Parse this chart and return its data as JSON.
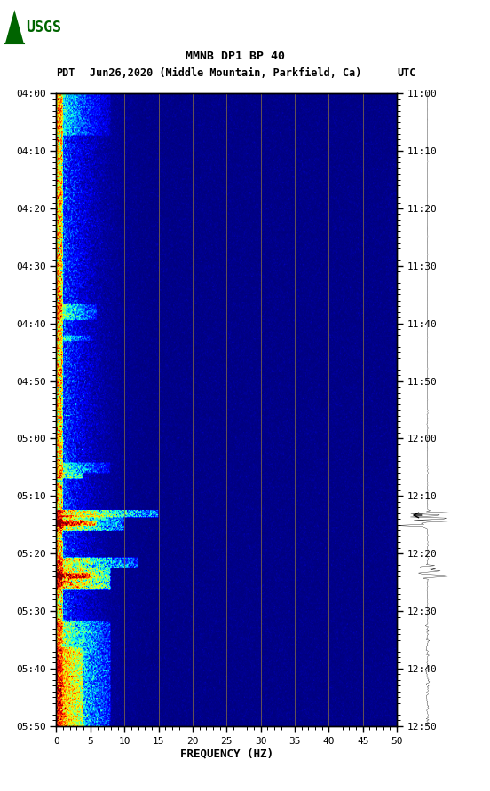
{
  "title_line1": "MMNB DP1 BP 40",
  "title_line2_left": "PDT",
  "title_line2_center": "Jun26,2020 (Middle Mountain, Parkfield, Ca)",
  "title_line2_right": "UTC",
  "xlabel": "FREQUENCY (HZ)",
  "freq_min": 0,
  "freq_max": 50,
  "freq_ticks": [
    0,
    5,
    10,
    15,
    20,
    25,
    30,
    35,
    40,
    45,
    50
  ],
  "freq_labels": [
    "0",
    "5",
    "10",
    "15",
    "20",
    "25",
    "30",
    "35",
    "40",
    "45",
    "50"
  ],
  "time_left_labels": [
    "04:00",
    "04:10",
    "04:20",
    "04:30",
    "04:40",
    "04:50",
    "05:00",
    "05:10",
    "05:20",
    "05:30",
    "05:40",
    "05:50"
  ],
  "time_right_labels": [
    "11:00",
    "11:10",
    "11:20",
    "11:30",
    "11:40",
    "11:50",
    "12:00",
    "12:10",
    "12:20",
    "12:30",
    "12:40",
    "12:50"
  ],
  "n_time_bins": 600,
  "n_freq_bins": 500,
  "grid_line_color": "#8B7340",
  "maroon_color": "#8B0000"
}
